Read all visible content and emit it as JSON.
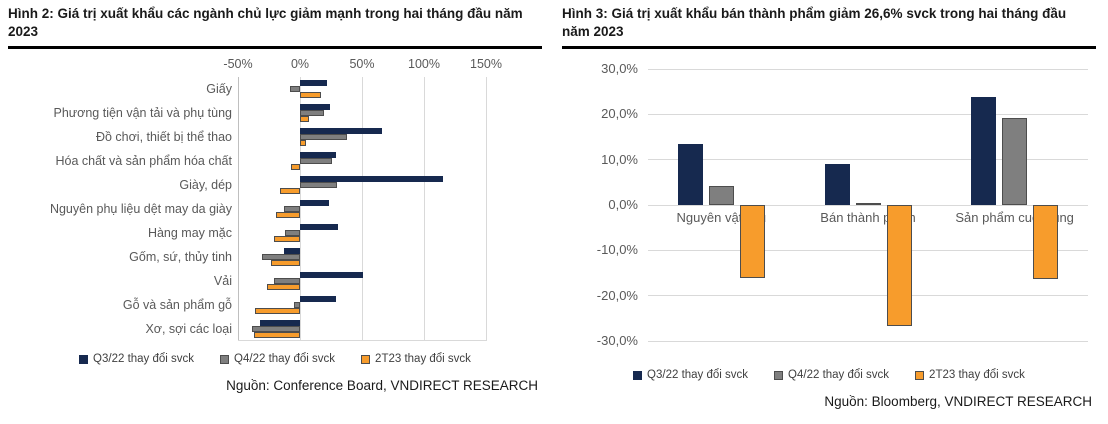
{
  "colors": {
    "navy": "#16294F",
    "gray": "#7F7F7F",
    "orange": "#F79C2C",
    "bar_border": "#4D4D4D",
    "grid": "#D9D9D9",
    "axis_edge": "#BFBFBF",
    "muted_text": "#595959",
    "title_text": "#1A1A1A"
  },
  "legend": [
    {
      "label": "Q3/22 thay đổi svck",
      "color_key": "navy"
    },
    {
      "label": "Q4/22 thay đổi svck",
      "color_key": "gray"
    },
    {
      "label": "2T23 thay đổi svck",
      "color_key": "orange"
    }
  ],
  "chart_data": [
    {
      "type": "bar",
      "orientation": "horizontal",
      "title": "Hình 2: Giá trị xuất khẩu các ngành chủ lực giảm mạnh trong hai tháng đầu năm 2023",
      "source": "Nguồn: Conference Board, VNDIRECT RESEARCH",
      "unit": "%",
      "xlim": [
        -50,
        150
      ],
      "x_ticks": [
        {
          "value": -50,
          "label": "-50%"
        },
        {
          "value": 0,
          "label": "0%"
        },
        {
          "value": 50,
          "label": "50%"
        },
        {
          "value": 100,
          "label": "100%"
        },
        {
          "value": 150,
          "label": "150%"
        }
      ],
      "grid": true,
      "legend_position": "bottom",
      "categories": [
        "Giấy",
        "Phương tiện vận tải và phụ tùng",
        "Đồ chơi, thiết bị thể thao",
        "Hóa chất và sản phẩm hóa chất",
        "Giày, dép",
        "Nguyên phụ liệu dệt may da giày",
        "Hàng may mặc",
        "Gốm, sứ, thủy tinh",
        "Vải",
        "Gỗ và sản phẩm gỗ",
        "Xơ, sợi các loại"
      ],
      "series": [
        {
          "name": "Q3/22 thay đổi svck",
          "color_key": "navy",
          "values": [
            22,
            24,
            66,
            29,
            115,
            23,
            31,
            -13,
            51,
            29,
            -32
          ]
        },
        {
          "name": "Q4/22 thay đổi svck",
          "color_key": "gray",
          "values": [
            -8,
            19,
            38,
            26,
            30,
            -13,
            -12,
            -31,
            -21,
            -5,
            -39
          ]
        },
        {
          "name": "2T23 thay đổi svck",
          "color_key": "orange",
          "values": [
            17,
            7,
            5,
            -7,
            -16,
            -19,
            -21,
            -23,
            -27,
            -36,
            -37
          ]
        }
      ]
    },
    {
      "type": "bar",
      "orientation": "vertical",
      "title": "Hình 3: Giá trị xuất khẩu bán thành phẩm giảm 26,6% svck trong hai tháng đầu năm 2023",
      "source": "Nguồn: Bloomberg, VNDIRECT RESEARCH",
      "unit": "%",
      "ylim": [
        -30,
        30
      ],
      "y_ticks": [
        {
          "value": 30,
          "label": "30,0%"
        },
        {
          "value": 20,
          "label": "20,0%"
        },
        {
          "value": 10,
          "label": "10,0%"
        },
        {
          "value": 0,
          "label": "0,0%"
        },
        {
          "value": -10,
          "label": "-10,0%"
        },
        {
          "value": -20,
          "label": "-20,0%"
        },
        {
          "value": -30,
          "label": "-30,0%"
        }
      ],
      "grid": true,
      "legend_position": "bottom",
      "categories": [
        "Nguyên vật liệu",
        "Bán thành phẩm",
        "Sản phẩm cuối cùng"
      ],
      "series": [
        {
          "name": "Q3/22 thay đổi svck",
          "color_key": "navy",
          "values": [
            13.4,
            9.1,
            23.9
          ]
        },
        {
          "name": "Q4/22 thay đổi svck",
          "color_key": "gray",
          "values": [
            4.1,
            0.4,
            19.1
          ]
        },
        {
          "name": "2T23 thay đổi svck",
          "color_key": "orange",
          "values": [
            -16.1,
            -26.6,
            -16.4
          ]
        }
      ]
    }
  ]
}
